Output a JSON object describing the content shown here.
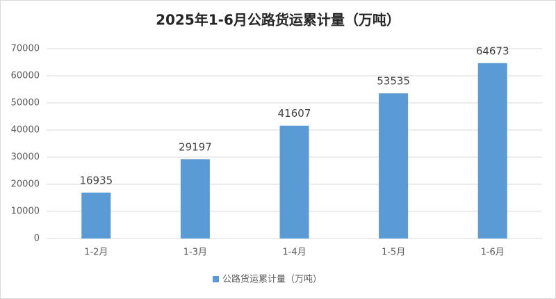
{
  "chart_data": {
    "type": "bar",
    "title": "2025年1-6月公路货运累计量（万吨）",
    "categories": [
      "1-2月",
      "1-3月",
      "1-4月",
      "1-5月",
      "1-6月"
    ],
    "series": [
      {
        "name": "公路货运累计量（万吨）",
        "color": "#5b9bd5",
        "values": [
          16935,
          29197,
          41607,
          53535,
          64673
        ]
      }
    ],
    "ylim": [
      0,
      70000
    ],
    "yticks": [
      0,
      10000,
      20000,
      30000,
      40000,
      50000,
      60000,
      70000
    ],
    "grid": true,
    "legend": "bottom"
  }
}
